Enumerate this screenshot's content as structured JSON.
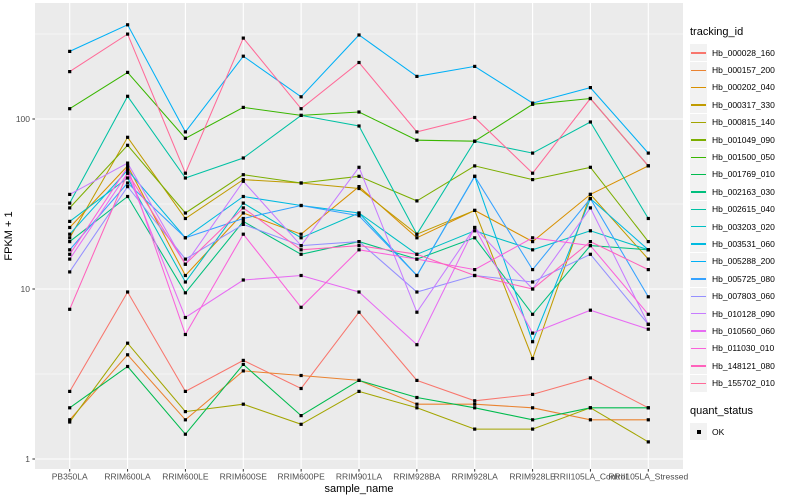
{
  "figure": {
    "background": "#FFFFFF",
    "panel_background": "#EBEBEB",
    "grid_color": "#FFFFFF",
    "axis_text_color": "#4D4D4D",
    "tick_color": "#333333",
    "point_color": "#000000"
  },
  "axes": {
    "x_title": "sample_name",
    "y_title": "FPKM + 1"
  },
  "legend": {
    "tracking_title": "tracking_id",
    "quant_title": "quant_status",
    "quant_items": [
      {
        "label": "OK",
        "marker": "black-square"
      }
    ]
  },
  "chart_data": {
    "type": "line",
    "title": "",
    "xlabel": "sample_name",
    "ylabel": "FPKM + 1",
    "y_scale": "log10",
    "y_ticks": [
      1,
      10,
      100
    ],
    "ylim": [
      0.9,
      480
    ],
    "grid": true,
    "legend_position": "right",
    "point_shape": "square",
    "point_color": "#000000",
    "categories": [
      "PB350LA",
      "RRIM600LA",
      "RRIM600LE",
      "RRIM600SE",
      "RRIM600PE",
      "RRIM901LA",
      "RRIM928BA",
      "RRIM928LA",
      "RRIM928LE",
      "RRII105LA_Control",
      "RRII105LA_Stressed"
    ],
    "series": [
      {
        "name": "Hb_000028_160",
        "color": "#F8766D",
        "values": [
          2.5,
          9.6,
          2.5,
          3.8,
          2.6,
          7.3,
          2.9,
          2.2,
          2.4,
          3.0,
          2.0
        ]
      },
      {
        "name": "Hb_000157_200",
        "color": "#EA8331",
        "values": [
          1.7,
          4.1,
          1.7,
          3.3,
          3.1,
          2.9,
          2.1,
          2.1,
          2.0,
          1.7,
          1.7
        ]
      },
      {
        "name": "Hb_000202_040",
        "color": "#D89000",
        "values": [
          23,
          53,
          12,
          28,
          21,
          40,
          20,
          29,
          19,
          36,
          53
        ]
      },
      {
        "name": "Hb_000317_330",
        "color": "#C09B00",
        "values": [
          20,
          78,
          26,
          44,
          42,
          39,
          21,
          29,
          3.9,
          36,
          15
        ]
      },
      {
        "name": "Hb_000815_140",
        "color": "#A3A500",
        "values": [
          1.65,
          4.8,
          1.9,
          2.1,
          1.6,
          2.5,
          2.0,
          1.5,
          1.5,
          2.0,
          1.26
        ]
      },
      {
        "name": "Hb_001049_090",
        "color": "#7CAE00",
        "values": [
          30,
          70,
          28,
          47,
          42,
          46,
          33,
          53,
          44,
          52,
          19
        ]
      },
      {
        "name": "Hb_001500_050",
        "color": "#39B600",
        "values": [
          115,
          188,
          77,
          117,
          105,
          110,
          75,
          74,
          122,
          132,
          53
        ]
      },
      {
        "name": "Hb_001769_010",
        "color": "#00BB4E",
        "values": [
          2.0,
          3.5,
          1.4,
          3.6,
          1.8,
          2.9,
          2.3,
          2.0,
          1.7,
          2.0,
          2.0
        ]
      },
      {
        "name": "Hb_002163_030",
        "color": "#00BF7D",
        "values": [
          19,
          35,
          9.5,
          25,
          16,
          19,
          15,
          20,
          7.1,
          18,
          17
        ]
      },
      {
        "name": "Hb_002615_040",
        "color": "#00C1A3",
        "values": [
          32,
          136,
          45,
          59,
          105,
          91,
          21,
          74,
          63,
          96,
          26
        ]
      },
      {
        "name": "Hb_003203_020",
        "color": "#00BFC4",
        "values": [
          25,
          45,
          11,
          32,
          20,
          28,
          16,
          22,
          17,
          22,
          17
        ]
      },
      {
        "name": "Hb_003531_060",
        "color": "#00BAE0",
        "values": [
          21,
          50,
          20,
          35,
          31,
          28,
          12,
          46,
          4.9,
          34,
          17
        ]
      },
      {
        "name": "Hb_005288_200",
        "color": "#00B0F6",
        "values": [
          250,
          358,
          84,
          234,
          135,
          312,
          178,
          204,
          124,
          153,
          63
        ]
      },
      {
        "name": "Hb_005725_080",
        "color": "#35A2FF",
        "values": [
          17,
          42,
          20,
          26,
          31,
          27,
          12,
          46,
          13,
          34,
          9
        ]
      },
      {
        "name": "Hb_007803_060",
        "color": "#9590FF",
        "values": [
          12.6,
          40,
          15,
          24,
          18,
          19,
          9.6,
          12,
          11,
          16,
          6.2
        ]
      },
      {
        "name": "Hb_010128_090",
        "color": "#C77CFF",
        "values": [
          36,
          55,
          14,
          43,
          18,
          52,
          7.3,
          23,
          10,
          30,
          6.2
        ]
      },
      {
        "name": "Hb_010560_060",
        "color": "#E76BF3",
        "values": [
          15,
          48,
          6.8,
          11.3,
          12,
          9.6,
          4.7,
          23,
          5.5,
          7.5,
          5.8
        ]
      },
      {
        "name": "Hb_011030_010",
        "color": "#FA62DB",
        "values": [
          16,
          52,
          5.4,
          21,
          7.8,
          17,
          15,
          13,
          20,
          18,
          7.1
        ]
      },
      {
        "name": "Hb_148121_080",
        "color": "#FF62BC",
        "values": [
          7.6,
          48,
          14,
          30,
          17,
          18,
          16,
          12,
          10,
          19,
          13
        ]
      },
      {
        "name": "Hb_155702_010",
        "color": "#FF6A98",
        "values": [
          190,
          316,
          48,
          299,
          115,
          215,
          84,
          102,
          48,
          132,
          53
        ]
      }
    ]
  }
}
